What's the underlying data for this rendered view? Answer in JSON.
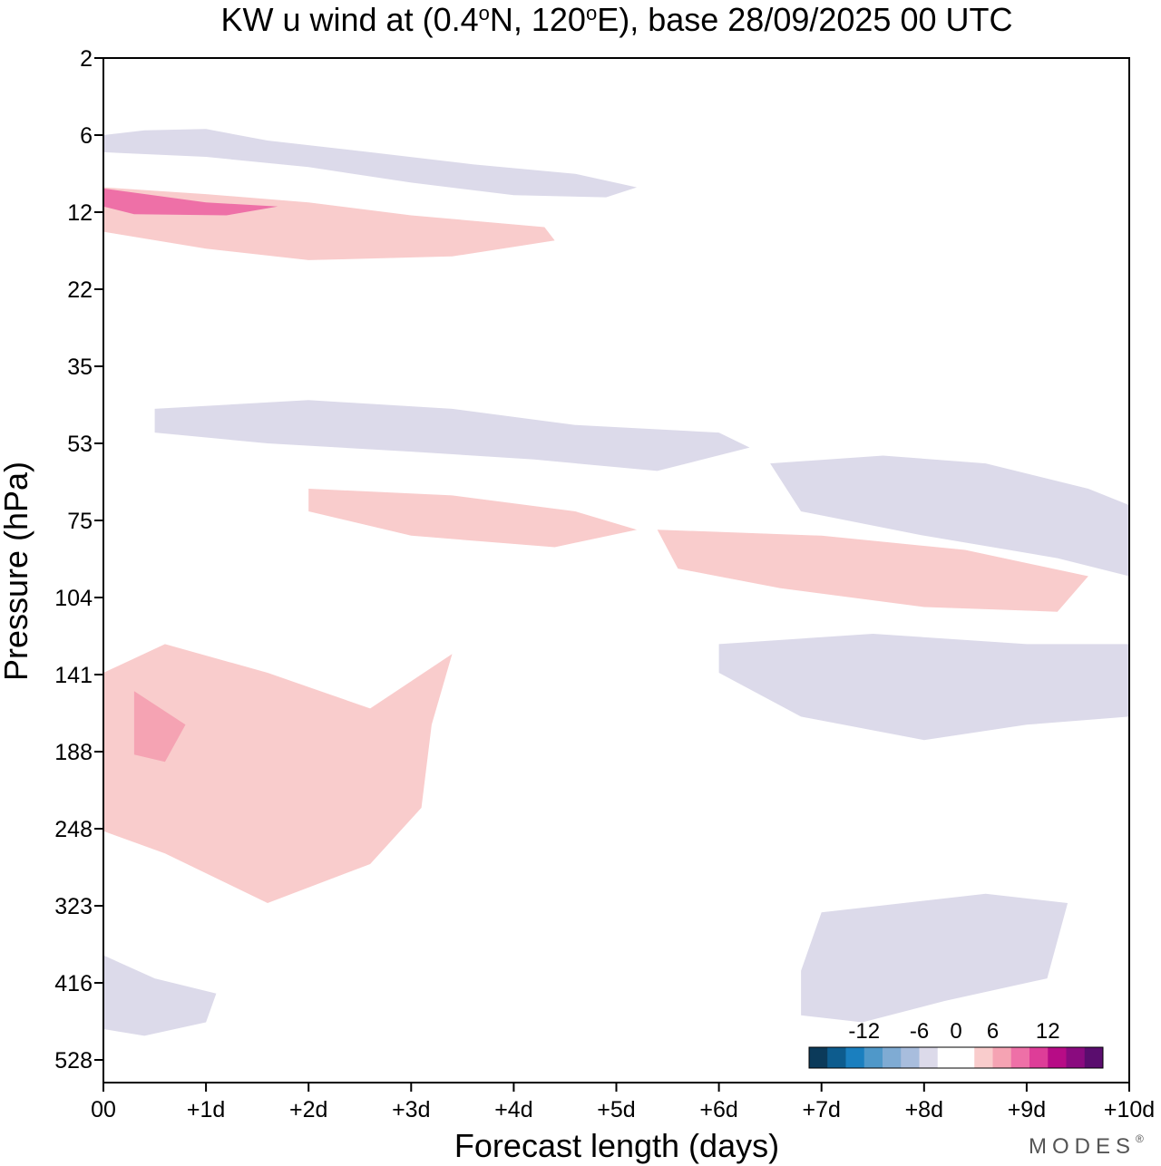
{
  "chart_data": {
    "type": "heatmap",
    "title_parts": [
      "KW u wind at (0.4",
      "o",
      "N, 120",
      "o",
      "E),  base 28/09/2025  00 UTC"
    ],
    "xlabel": "Forecast length (days)",
    "ylabel": "Pressure (hPa)",
    "x_range": [
      0,
      10
    ],
    "x_tick_labels": [
      "00",
      "+1d",
      "+2d",
      "+3d",
      "+4d",
      "+5d",
      "+6d",
      "+7d",
      "+8d",
      "+9d",
      "+10d"
    ],
    "y_tick_labels": [
      "2",
      "6",
      "12",
      "22",
      "35",
      "53",
      "75",
      "104",
      "141",
      "188",
      "248",
      "323",
      "416",
      "528"
    ],
    "y_scale": "log-like pressure levels, 2 hPa at top",
    "colorbar": {
      "tick_labels": [
        "-12",
        "-6",
        "0",
        "6",
        "12"
      ],
      "levels": [
        -16,
        -14,
        -12,
        -10,
        -8,
        -6,
        -4,
        -2,
        2,
        4,
        6,
        8,
        10,
        12,
        14,
        16
      ],
      "colors": [
        "#0b3a5a",
        "#0d5c8e",
        "#1a7fbf",
        "#4f98c9",
        "#7fabd3",
        "#a8bddd",
        "#dcdaea",
        "#ffffff",
        "#ffffff",
        "#f9cccc",
        "#f5a3b3",
        "#ee70a7",
        "#de3d98",
        "#b70c86",
        "#8a0b7f",
        "#5a0d6e"
      ]
    },
    "features": [
      {
        "sign": "neg",
        "level": 1,
        "desc": "upper band blue",
        "points": [
          [
            0,
            6
          ],
          [
            0.4,
            5.6
          ],
          [
            1,
            5.5
          ],
          [
            1.6,
            6.3
          ],
          [
            2.6,
            7
          ],
          [
            3.6,
            7.8
          ],
          [
            4.6,
            8.5
          ],
          [
            5.2,
            9.6
          ],
          [
            4.9,
            10.5
          ],
          [
            4,
            10.3
          ],
          [
            3,
            9.2
          ],
          [
            2,
            8
          ],
          [
            1,
            7.3
          ],
          [
            0,
            7
          ]
        ]
      },
      {
        "sign": "pos",
        "level": 1,
        "desc": "strong pink 9-14 hPa",
        "points": [
          [
            0,
            9.6
          ],
          [
            1,
            10.2
          ],
          [
            2,
            11
          ],
          [
            3,
            12.3
          ],
          [
            4.3,
            13.5
          ],
          [
            4.4,
            15
          ],
          [
            3.4,
            17
          ],
          [
            2,
            17.5
          ],
          [
            1,
            16
          ],
          [
            0,
            14
          ]
        ]
      },
      {
        "sign": "pos",
        "level": 3,
        "desc": "magenta core near start",
        "points": [
          [
            0,
            9.7
          ],
          [
            1,
            11
          ],
          [
            1.7,
            11.4
          ],
          [
            1.2,
            12.3
          ],
          [
            0.3,
            12.2
          ],
          [
            0,
            11.4
          ]
        ]
      },
      {
        "sign": "neg",
        "level": 1,
        "desc": "band 50-60 hPa",
        "points": [
          [
            0.5,
            44
          ],
          [
            2,
            42
          ],
          [
            3.4,
            44
          ],
          [
            4.6,
            48
          ],
          [
            6,
            50
          ],
          [
            6.3,
            54
          ],
          [
            5.4,
            60
          ],
          [
            4.2,
            57
          ],
          [
            3,
            55
          ],
          [
            1.6,
            53
          ],
          [
            0.5,
            50
          ]
        ]
      },
      {
        "sign": "pos",
        "level": 1,
        "desc": "pink band 70-95 hPa",
        "points": [
          [
            2,
            65
          ],
          [
            3.4,
            67
          ],
          [
            4.6,
            72
          ],
          [
            5.2,
            78
          ],
          [
            4.4,
            84
          ],
          [
            3,
            80
          ],
          [
            2,
            72
          ]
        ]
      },
      {
        "sign": "pos",
        "level": 1,
        "desc": "late pink 80-110 hPa",
        "points": [
          [
            5.4,
            78
          ],
          [
            7,
            80
          ],
          [
            8.4,
            85
          ],
          [
            9.6,
            95
          ],
          [
            9.3,
            110
          ],
          [
            8,
            108
          ],
          [
            6.6,
            100
          ],
          [
            5.6,
            92
          ]
        ]
      },
      {
        "sign": "neg",
        "level": 1,
        "desc": "late blue 55-90 hPa",
        "points": [
          [
            6.5,
            58
          ],
          [
            7.6,
            56
          ],
          [
            8.6,
            58
          ],
          [
            9.6,
            65
          ],
          [
            10,
            70
          ],
          [
            10,
            95
          ],
          [
            9.3,
            88
          ],
          [
            8,
            80
          ],
          [
            6.8,
            72
          ]
        ]
      },
      {
        "sign": "pos",
        "level": 1,
        "desc": "lower pink lobe 130-330 hPa",
        "points": [
          [
            0,
            140
          ],
          [
            0.6,
            125
          ],
          [
            1.6,
            140
          ],
          [
            2.6,
            160
          ],
          [
            3.4,
            130
          ],
          [
            3.2,
            170
          ],
          [
            3.1,
            230
          ],
          [
            2.6,
            280
          ],
          [
            1.6,
            320
          ],
          [
            0.6,
            270
          ],
          [
            0,
            250
          ]
        ]
      },
      {
        "sign": "pos",
        "level": 2,
        "desc": "pink core 150-200 hPa",
        "points": [
          [
            0.3,
            150
          ],
          [
            0.8,
            170
          ],
          [
            0.6,
            195
          ],
          [
            0.3,
            190
          ]
        ]
      },
      {
        "sign": "neg",
        "level": 1,
        "desc": "late blue 120-180 hPa",
        "points": [
          [
            6,
            125
          ],
          [
            7.5,
            120
          ],
          [
            9,
            125
          ],
          [
            10,
            125
          ],
          [
            10,
            165
          ],
          [
            9,
            170
          ],
          [
            8,
            180
          ],
          [
            6.8,
            165
          ],
          [
            6,
            140
          ]
        ]
      },
      {
        "sign": "neg",
        "level": 1,
        "desc": "bottom right blob",
        "points": [
          [
            6.8,
            400
          ],
          [
            7,
            330
          ],
          [
            8.6,
            310
          ],
          [
            9.4,
            320
          ],
          [
            9.2,
            410
          ],
          [
            8.2,
            440
          ],
          [
            7.4,
            470
          ],
          [
            6.8,
            460
          ]
        ]
      },
      {
        "sign": "neg",
        "level": 1,
        "desc": "bottom left blob",
        "points": [
          [
            0,
            380
          ],
          [
            0.5,
            410
          ],
          [
            1.1,
            430
          ],
          [
            1,
            470
          ],
          [
            0.4,
            490
          ],
          [
            0,
            480
          ]
        ]
      }
    ]
  },
  "branding": {
    "text": "MODES",
    "mark": "®"
  }
}
